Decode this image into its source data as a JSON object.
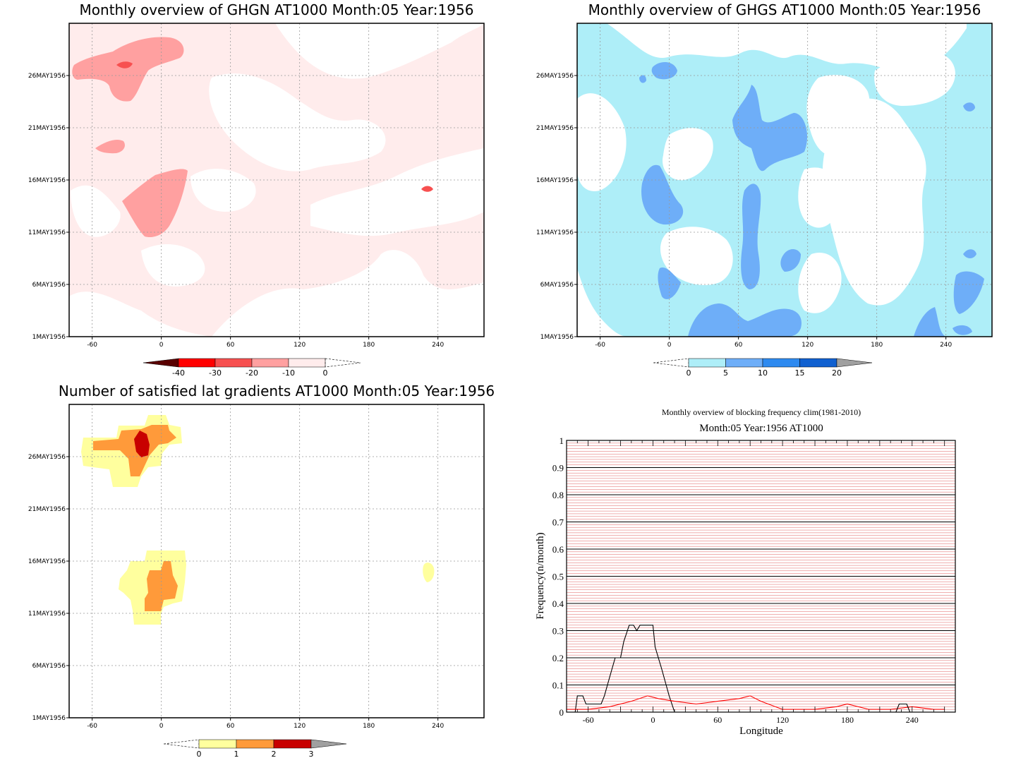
{
  "chart_data": [
    {
      "type": "heatmap",
      "title": "Monthly overview of GHGN AT1000 Month:05 Year:1956",
      "x_ticks": [
        "-60",
        "0",
        "60",
        "120",
        "180",
        "240"
      ],
      "y_ticks": [
        "1MAY1956",
        "6MAY1956",
        "11MAY1956",
        "16MAY1956",
        "21MAY1956",
        "26MAY1956"
      ],
      "xlim": [
        -80,
        280
      ],
      "colorbar": {
        "labels": [
          "-40",
          "-30",
          "-20",
          "-10",
          "0"
        ],
        "colors": [
          "#5a0000",
          "#ff0000",
          "#f75050",
          "#ffa0a0",
          "#ffecec"
        ]
      },
      "regions": [
        {
          "level": "-10 to 0",
          "color": "#ffecec",
          "extent": "most of the domain"
        },
        {
          "level": "-20 to -10",
          "color": "#ffa0a0",
          "x": [
            -75,
            20
          ],
          "dates": [
            "24MAY1956",
            "29MAY1956"
          ]
        },
        {
          "level": "-30 to -20",
          "color": "#f75050",
          "x": [
            -40,
            -25
          ],
          "dates": [
            "26MAY1956",
            "27MAY1956"
          ]
        },
        {
          "level": "-20 to -10",
          "color": "#ffa0a0",
          "x": [
            -35,
            20
          ],
          "dates": [
            "11MAY1956",
            "17MAY1956"
          ]
        },
        {
          "level": "-20 to -10",
          "color": "#ffa0a0",
          "x": [
            -55,
            -30
          ],
          "dates": [
            "19MAY1956",
            "20MAY1956"
          ]
        }
      ]
    },
    {
      "type": "heatmap",
      "title": "Monthly overview of GHGS AT1000 Month:05 Year:1956",
      "x_ticks": [
        "-60",
        "0",
        "60",
        "120",
        "180",
        "240"
      ],
      "y_ticks": [
        "1MAY1956",
        "6MAY1956",
        "11MAY1956",
        "16MAY1956",
        "21MAY1956",
        "26MAY1956"
      ],
      "xlim": [
        -80,
        280
      ],
      "colorbar": {
        "labels": [
          "0",
          "5",
          "10",
          "15",
          "20"
        ],
        "colors": [
          "#aeeef8",
          "#6eaef8",
          "#2e8af0",
          "#1060d0",
          "#a0a0a0"
        ]
      },
      "regions": [
        {
          "level": "0 to 5",
          "color": "#aeeef8",
          "extent": "most of the domain"
        },
        {
          "level": "5 to 10",
          "color": "#6eaef8",
          "x": [
            -30,
            15
          ],
          "dates": [
            "11MAY1956",
            "17MAY1956"
          ]
        },
        {
          "level": "5 to 10",
          "color": "#6eaef8",
          "x": [
            50,
            120
          ],
          "dates": [
            "16MAY1956",
            "24MAY1956"
          ]
        },
        {
          "level": "5 to 10",
          "color": "#6eaef8",
          "x": [
            60,
            75
          ],
          "dates": [
            "3MAY1956",
            "16MAY1956"
          ]
        },
        {
          "level": "5 to 10",
          "color": "#6eaef8",
          "x": [
            15,
            100
          ],
          "dates": [
            "1MAY1956",
            "3MAY1956"
          ]
        }
      ]
    },
    {
      "type": "heatmap",
      "title": "Number of satisfied lat gradients AT1000 Month:05 Year:1956",
      "x_ticks": [
        "-60",
        "0",
        "60",
        "120",
        "180",
        "240"
      ],
      "y_ticks": [
        "1MAY1956",
        "6MAY1956",
        "11MAY1956",
        "16MAY1956",
        "21MAY1956",
        "26MAY1956"
      ],
      "xlim": [
        -80,
        280
      ],
      "colorbar": {
        "labels": [
          "0",
          "1",
          "2",
          "3"
        ],
        "colors": [
          "#ffff9e",
          "#ff9a3a",
          "#c80000",
          "#a0a0a0"
        ]
      },
      "regions": [
        {
          "level": "0 to 1",
          "color": "#ffff9e",
          "x": [
            -70,
            20
          ],
          "dates": [
            "23MAY1956",
            "30MAY1956"
          ]
        },
        {
          "level": "1 to 2",
          "color": "#ff9a3a",
          "x": [
            -60,
            15
          ],
          "dates": [
            "24MAY1956",
            "29MAY1956"
          ]
        },
        {
          "level": "2 to 3",
          "color": "#c80000",
          "x": [
            -25,
            -10
          ],
          "dates": [
            "26MAY1956",
            "28MAY1956"
          ]
        },
        {
          "level": "0 to 1",
          "color": "#ffff9e",
          "x": [
            -35,
            20
          ],
          "dates": [
            "10MAY1956",
            "17MAY1956"
          ]
        },
        {
          "level": "1 to 2",
          "color": "#ff9a3a",
          "x": [
            -15,
            15
          ],
          "dates": [
            "11MAY1956",
            "16MAY1956"
          ]
        },
        {
          "level": "0 to 1",
          "color": "#ffff9e",
          "x": [
            225,
            235
          ],
          "dates": [
            "14MAY1956",
            "16MAY1956"
          ]
        }
      ]
    },
    {
      "type": "line",
      "title": "Monthly overview of blocking frequency clim(1981-2010)",
      "subtitle": "Month:05 Year:1956  AT1000",
      "xlabel": "Longitude",
      "ylabel": "Frequency(n/month)",
      "xlim": [
        -80,
        280
      ],
      "ylim": [
        0,
        1
      ],
      "x_ticks": [
        "-60",
        "0",
        "60",
        "120",
        "180",
        "240"
      ],
      "y_ticks": [
        "0",
        "0.1",
        "0.2",
        "0.3",
        "0.4",
        "0.5",
        "0.6",
        "0.7",
        "0.8",
        "0.9",
        "1"
      ],
      "series": [
        {
          "color": "#000000",
          "x": [
            -80,
            -72,
            -70,
            -65,
            -62,
            -55,
            -48,
            -45,
            -40,
            -35,
            -30,
            -27,
            -22,
            -18,
            -15,
            -12,
            -8,
            0,
            2,
            5,
            8,
            15,
            20,
            280
          ],
          "values": [
            0,
            0,
            0.06,
            0.06,
            0.03,
            0.03,
            0.03,
            0.06,
            0.13,
            0.2,
            0.2,
            0.26,
            0.32,
            0.32,
            0.3,
            0.32,
            0.32,
            0.32,
            0.24,
            0.2,
            0.16,
            0.06,
            0,
            0
          ]
        },
        {
          "color": "#ff0000",
          "x": [
            -80,
            -60,
            -40,
            -20,
            -5,
            5,
            20,
            40,
            60,
            80,
            90,
            100,
            120,
            150,
            170,
            180,
            200,
            220,
            240,
            260,
            270
          ],
          "values": [
            0.01,
            0.01,
            0.02,
            0.04,
            0.06,
            0.05,
            0.04,
            0.03,
            0.04,
            0.05,
            0.06,
            0.04,
            0.01,
            0.01,
            0.02,
            0.03,
            0.01,
            0.01,
            0.02,
            0.01,
            0.01
          ]
        },
        {
          "color": "#000000",
          "x": [
            225,
            228,
            235,
            238
          ],
          "values": [
            0,
            0.03,
            0.03,
            0
          ]
        }
      ]
    }
  ]
}
